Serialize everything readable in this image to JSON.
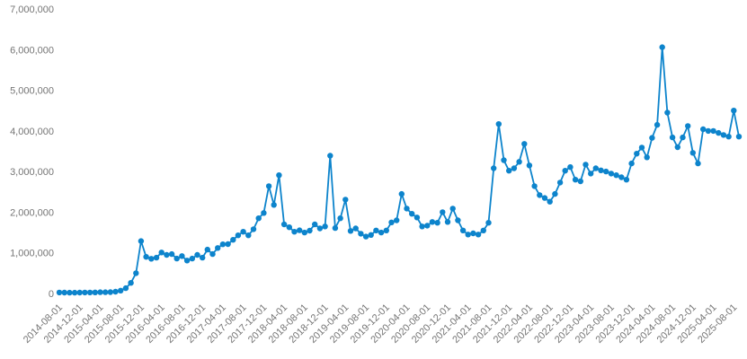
{
  "chart_data": {
    "type": "line",
    "title": "",
    "xlabel": "",
    "ylabel": "",
    "grid": false,
    "legend": false,
    "marker": "circle",
    "series_color": "#0d84cc",
    "label_color": "#757575",
    "background_color": "#ffffff",
    "ylim": [
      0,
      7000000
    ],
    "y_tick_interval": 1000000,
    "y_tick_labels": [
      "0",
      "1,000,000",
      "2,000,000",
      "3,000,000",
      "4,000,000",
      "5,000,000",
      "6,000,000",
      "7,000,000"
    ],
    "x_tick_every": 4,
    "x": [
      "2014-08-01",
      "2014-09-01",
      "2014-10-01",
      "2014-11-01",
      "2014-12-01",
      "2015-01-01",
      "2015-02-01",
      "2015-03-01",
      "2015-04-01",
      "2015-05-01",
      "2015-06-01",
      "2015-07-01",
      "2015-08-01",
      "2015-09-01",
      "2015-10-01",
      "2015-11-01",
      "2015-12-01",
      "2016-01-01",
      "2016-02-01",
      "2016-03-01",
      "2016-04-01",
      "2016-05-01",
      "2016-06-01",
      "2016-07-01",
      "2016-08-01",
      "2016-09-01",
      "2016-10-01",
      "2016-11-01",
      "2016-12-01",
      "2017-01-01",
      "2017-02-01",
      "2017-03-01",
      "2017-04-01",
      "2017-05-01",
      "2017-06-01",
      "2017-07-01",
      "2017-08-01",
      "2017-09-01",
      "2017-10-01",
      "2017-11-01",
      "2017-12-01",
      "2018-01-01",
      "2018-02-01",
      "2018-03-01",
      "2018-04-01",
      "2018-05-01",
      "2018-06-01",
      "2018-07-01",
      "2018-08-01",
      "2018-09-01",
      "2018-10-01",
      "2018-11-01",
      "2018-12-01",
      "2019-01-01",
      "2019-02-01",
      "2019-03-01",
      "2019-04-01",
      "2019-05-01",
      "2019-06-01",
      "2019-07-01",
      "2019-08-01",
      "2019-09-01",
      "2019-10-01",
      "2019-11-01",
      "2019-12-01",
      "2020-01-01",
      "2020-02-01",
      "2020-03-01",
      "2020-04-01",
      "2020-05-01",
      "2020-06-01",
      "2020-07-01",
      "2020-08-01",
      "2020-09-01",
      "2020-10-01",
      "2020-11-01",
      "2020-12-01",
      "2021-01-01",
      "2021-02-01",
      "2021-03-01",
      "2021-04-01",
      "2021-05-01",
      "2021-06-01",
      "2021-07-01",
      "2021-08-01",
      "2021-09-01",
      "2021-10-01",
      "2021-11-01",
      "2021-12-01",
      "2022-01-01",
      "2022-02-01",
      "2022-03-01",
      "2022-04-01",
      "2022-05-01",
      "2022-06-01",
      "2022-07-01",
      "2022-08-01",
      "2022-09-01",
      "2022-10-01",
      "2022-11-01",
      "2022-12-01",
      "2023-01-01",
      "2023-02-01",
      "2023-03-01",
      "2023-04-01",
      "2023-05-01",
      "2023-06-01",
      "2023-07-01",
      "2023-08-01",
      "2023-09-01",
      "2023-10-01",
      "2023-11-01",
      "2023-12-01",
      "2024-01-01",
      "2024-02-01",
      "2024-03-01",
      "2024-04-01",
      "2024-05-01",
      "2024-06-01",
      "2024-07-01",
      "2024-08-01",
      "2024-09-01",
      "2024-10-01",
      "2024-11-01",
      "2024-12-01",
      "2025-01-01",
      "2025-02-01",
      "2025-03-01",
      "2025-04-01",
      "2025-05-01",
      "2025-06-01",
      "2025-07-01",
      "2025-08-01",
      "2025-09-01"
    ],
    "values": [
      25000,
      22000,
      20000,
      20000,
      22000,
      24000,
      25000,
      27000,
      30000,
      30000,
      33000,
      45000,
      70000,
      130000,
      260000,
      500000,
      1290000,
      900000,
      855000,
      880000,
      1010000,
      950000,
      970000,
      860000,
      920000,
      810000,
      860000,
      950000,
      880000,
      1080000,
      970000,
      1120000,
      1210000,
      1215000,
      1320000,
      1430000,
      1520000,
      1430000,
      1580000,
      1850000,
      1980000,
      2640000,
      2180000,
      2910000,
      1700000,
      1630000,
      1520000,
      1555000,
      1500000,
      1545000,
      1700000,
      1600000,
      1650000,
      3390000,
      1610000,
      1850000,
      2310000,
      1540000,
      1600000,
      1470000,
      1400000,
      1440000,
      1550000,
      1500000,
      1550000,
      1750000,
      1800000,
      2450000,
      2090000,
      1960000,
      1870000,
      1650000,
      1670000,
      1760000,
      1740000,
      2000000,
      1760000,
      2090000,
      1800000,
      1550000,
      1450000,
      1480000,
      1450000,
      1550000,
      1740000,
      3080000,
      4170000,
      3280000,
      3020000,
      3080000,
      3240000,
      3680000,
      3150000,
      2640000,
      2420000,
      2350000,
      2260000,
      2450000,
      2730000,
      3020000,
      3110000,
      2800000,
      2760000,
      3170000,
      2950000,
      3080000,
      3030000,
      3000000,
      2950000,
      2910000,
      2860000,
      2800000,
      3200000,
      3440000,
      3590000,
      3350000,
      3830000,
      4150000,
      6060000,
      4450000,
      3840000,
      3600000,
      3840000,
      4120000,
      3460000,
      3200000,
      4040000,
      4000000,
      4000000,
      3950000,
      3900000,
      3860000,
      4500000,
      3860000
    ]
  }
}
